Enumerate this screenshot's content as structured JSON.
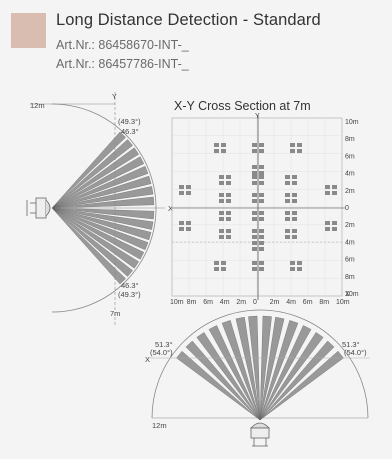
{
  "header": {
    "title": "Long Distance Detection - Standard",
    "art_numbers": [
      "Art.Nr.: 86458670-INT-_",
      "Art.Nr.: 86457786-INT-_"
    ],
    "swatch_color": "#d8bdb0"
  },
  "side_view": {
    "radius_label": "12m",
    "bottom_label": "7m",
    "y_label": "Y",
    "x_label": "X",
    "top_angle_outer": "(49.3°)",
    "top_angle_inner": "46.3°",
    "bottom_angle_inner": "46.3°",
    "bottom_angle_outer": "(49.3°)"
  },
  "cross_section": {
    "title": "X-Y Cross Section at 7m",
    "y_label": "Y",
    "x_label": "X",
    "right_ticks": [
      "10m",
      "8m",
      "6m",
      "4m",
      "2m",
      "0",
      "2m",
      "4m",
      "6m",
      "8m",
      "10m"
    ],
    "bottom_ticks": [
      "10m",
      "8m",
      "6m",
      "4m",
      "2m",
      "0",
      "2m",
      "4m",
      "6m",
      "8m",
      "10m"
    ]
  },
  "top_view": {
    "radius_label": "12m",
    "x_label": "X",
    "left_angle_inner": "51.3°",
    "left_angle_outer": "(54.0°)",
    "right_angle_inner": "51.3°",
    "right_angle_outer": "(54.0°)"
  }
}
